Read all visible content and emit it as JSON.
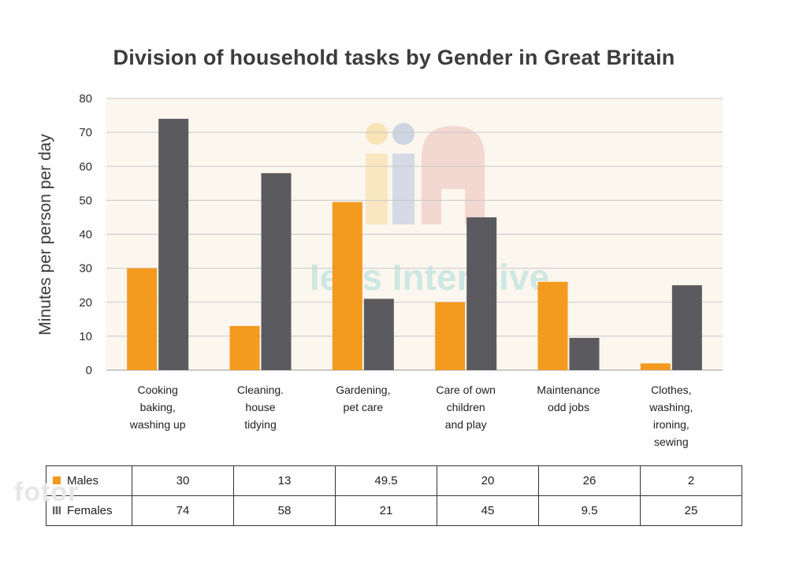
{
  "chart_data": {
    "type": "bar",
    "title": "Division of household tasks by Gender in Great Britain",
    "xlabel": "",
    "ylabel": "Minutes per person per day",
    "ylim": [
      0,
      80
    ],
    "yticks": [
      0,
      10,
      20,
      30,
      40,
      50,
      60,
      70,
      80
    ],
    "grid": true,
    "categories": [
      [
        "Cooking",
        "baking,",
        "washing up"
      ],
      [
        "Cleaning.",
        "house",
        "tidying"
      ],
      [
        "Gardening,",
        "pet care"
      ],
      [
        "Care of own",
        "children",
        "and play"
      ],
      [
        "Maintenance",
        "odd jobs"
      ],
      [
        "Clothes,",
        "washing,",
        "ironing,",
        "sewing"
      ]
    ],
    "series": [
      {
        "name": "Males",
        "color": "#f39a1f",
        "values": [
          30,
          13,
          49.5,
          20,
          26,
          2
        ],
        "labels": [
          "30",
          "13",
          "49.5",
          "20",
          "26",
          "2"
        ]
      },
      {
        "name": "Females",
        "color": "#5b5b5f",
        "values": [
          74,
          58,
          21,
          45,
          9.5,
          25
        ],
        "labels": [
          "74",
          "58",
          "21",
          "45",
          "9.5",
          "25"
        ]
      }
    ],
    "watermark": "Ielts Intensive"
  },
  "corner_watermark": "fotor"
}
